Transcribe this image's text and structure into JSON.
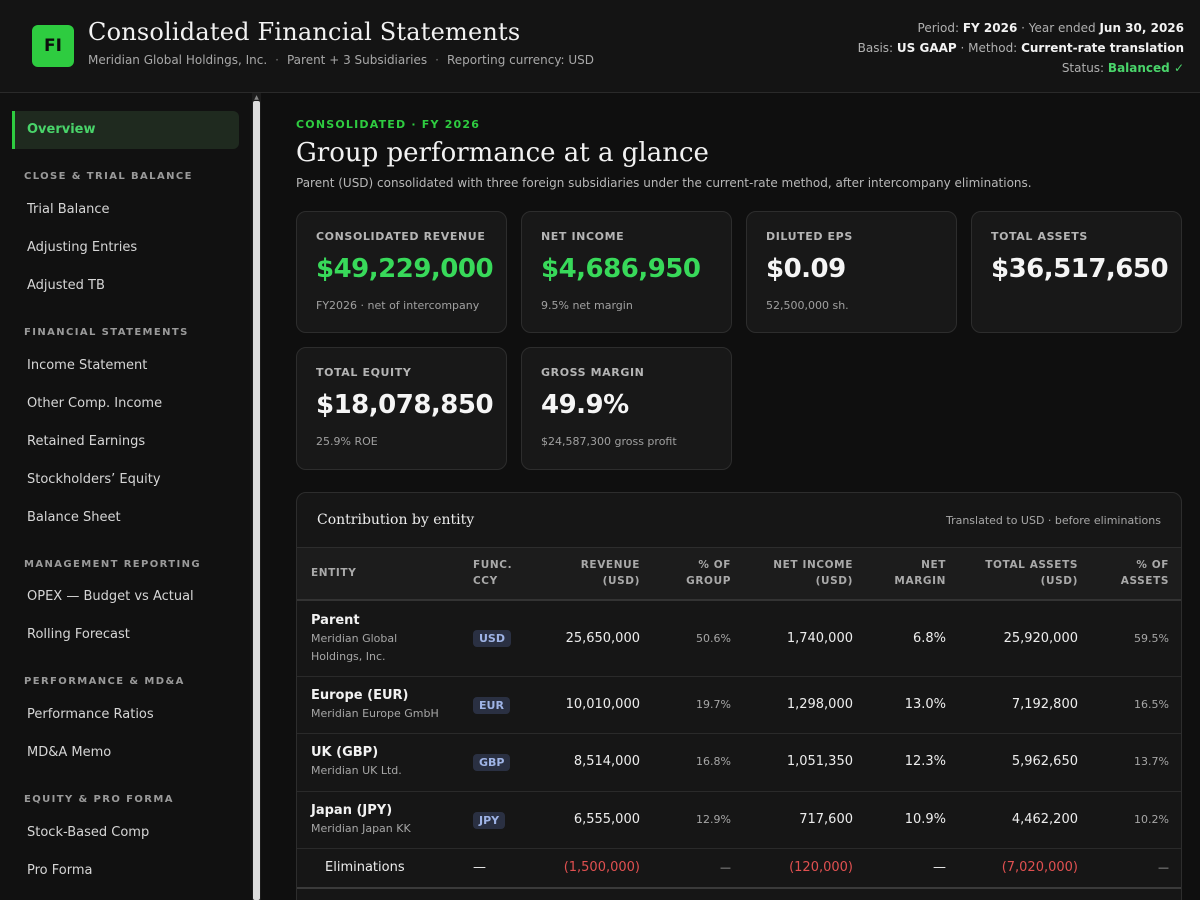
{
  "header": {
    "logo_text": "FI",
    "title": "Consolidated Financial Statements",
    "company": "Meridian Global Holdings, Inc.",
    "scope": "Parent + 3 Subsidiaries",
    "currency": "Reporting currency: USD",
    "period_label": "Period:",
    "period_value": "FY 2026",
    "year_ended_label": "· Year ended",
    "year_ended_value": "Jun 30, 2026",
    "basis_label": "Basis:",
    "basis_value": "US GAAP",
    "method_label": "· Method:",
    "method_value": "Current-rate translation",
    "status_label": "Status:",
    "status_value": "Balanced ✓"
  },
  "sidebar": {
    "active": "Overview",
    "sections": [
      {
        "title": "CLOSE & TRIAL BALANCE",
        "items": [
          "Trial Balance",
          "Adjusting Entries",
          "Adjusted TB"
        ]
      },
      {
        "title": "FINANCIAL STATEMENTS",
        "items": [
          "Income Statement",
          "Other Comp. Income",
          "Retained Earnings",
          "Stockholders’ Equity",
          "Balance Sheet"
        ]
      },
      {
        "title": "MANAGEMENT REPORTING",
        "items": [
          "OPEX — Budget vs Actual",
          "Rolling Forecast"
        ]
      },
      {
        "title": "PERFORMANCE & MD&A",
        "items": [
          "Performance Ratios",
          "MD&A Memo"
        ]
      },
      {
        "title": "EQUITY & PRO FORMA",
        "items": [
          "Stock-Based Comp",
          "Pro Forma"
        ]
      }
    ]
  },
  "main": {
    "eyebrow": "CONSOLIDATED · FY 2026",
    "title": "Group performance at a glance",
    "description": "Parent (USD) consolidated with three foreign subsidiaries under the current-rate method, after intercompany eliminations."
  },
  "kpis": [
    {
      "label": "CONSOLIDATED REVENUE",
      "value": "$49,229,000",
      "sub": "FY2026 · net of intercompany"
    },
    {
      "label": "NET INCOME",
      "value": "$4,686,950",
      "sub": "9.5% net margin"
    },
    {
      "label": "DILUTED EPS",
      "value": "$0.09",
      "sub": "52,500,000 sh."
    },
    {
      "label": "TOTAL ASSETS",
      "value": "$36,517,650",
      "sub": ""
    },
    {
      "label": "TOTAL EQUITY",
      "value": "$18,078,850",
      "sub": "25.9% ROE"
    },
    {
      "label": "GROSS MARGIN",
      "value": "49.9%",
      "sub": "$24,587,300 gross profit"
    }
  ],
  "contribution": {
    "title": "Contribution by entity",
    "note": "Translated to USD · before eliminations",
    "columns": [
      [
        "ENTITY",
        ""
      ],
      [
        "FUNC.",
        "CCY"
      ],
      [
        "REVENUE",
        "(USD)"
      ],
      [
        "% OF",
        "GROUP"
      ],
      [
        "NET INCOME",
        "(USD)"
      ],
      [
        "NET",
        "MARGIN"
      ],
      [
        "TOTAL ASSETS",
        "(USD)"
      ],
      [
        "% OF",
        "ASSETS"
      ]
    ],
    "rows": [
      {
        "name": "Parent",
        "sub1": "Meridian Global",
        "sub2": "Holdings, Inc.",
        "ccy": "USD",
        "revenue": "25,650,000",
        "pct_group": "50.6%",
        "net_income": "1,740,000",
        "net_margin": "6.8%",
        "total_assets": "25,920,000",
        "pct_assets": "59.5%"
      },
      {
        "name": "Europe (EUR)",
        "sub1": "Meridian Europe GmbH",
        "sub2": "",
        "ccy": "EUR",
        "revenue": "10,010,000",
        "pct_group": "19.7%",
        "net_income": "1,298,000",
        "net_margin": "13.0%",
        "total_assets": "7,192,800",
        "pct_assets": "16.5%"
      },
      {
        "name": "UK (GBP)",
        "sub1": "Meridian UK Ltd.",
        "sub2": "",
        "ccy": "GBP",
        "revenue": "8,514,000",
        "pct_group": "16.8%",
        "net_income": "1,051,350",
        "net_margin": "12.3%",
        "total_assets": "5,962,650",
        "pct_assets": "13.7%"
      },
      {
        "name": "Japan (JPY)",
        "sub1": "Meridian Japan KK",
        "sub2": "",
        "ccy": "JPY",
        "revenue": "6,555,000",
        "pct_group": "12.9%",
        "net_income": "717,600",
        "net_margin": "10.9%",
        "total_assets": "4,462,200",
        "pct_assets": "10.2%"
      }
    ],
    "eliminations": {
      "name": "Eliminations",
      "ccy": "—",
      "revenue": "(1,500,000)",
      "pct_group": "—",
      "net_income": "(120,000)",
      "net_margin": "—",
      "total_assets": "(7,020,000)",
      "pct_assets": "—"
    }
  },
  "colors": {
    "accent": "#2ecc40",
    "negative": "#e05050",
    "background": "#0d0d0d"
  }
}
